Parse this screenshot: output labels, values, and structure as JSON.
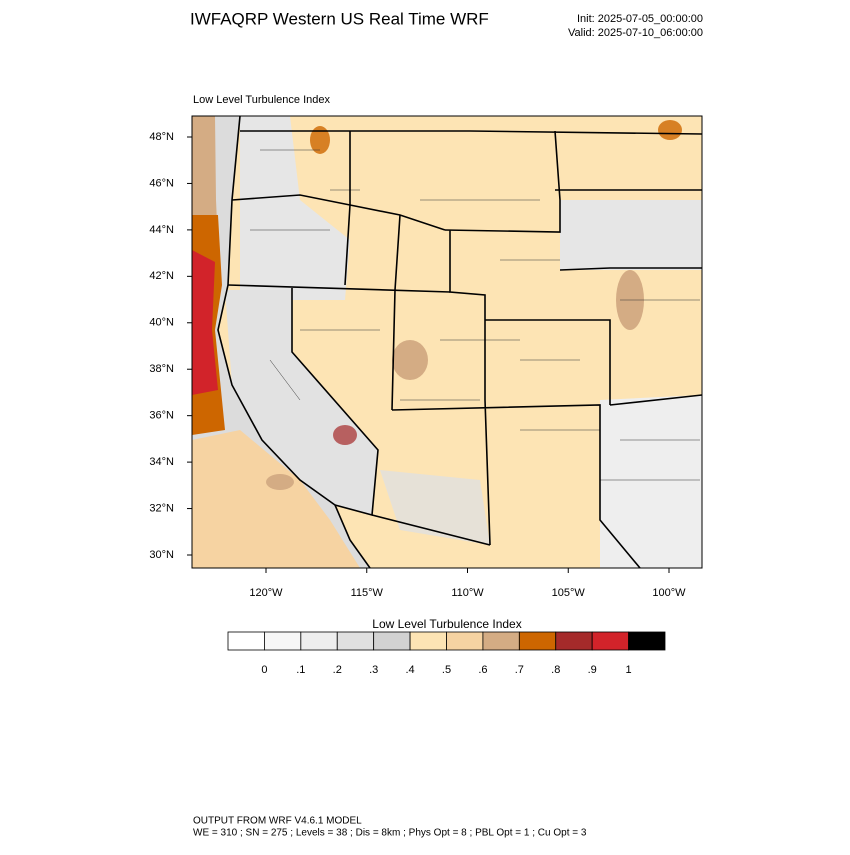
{
  "header": {
    "title": "IWFAQRP Western US Real Time WRF",
    "init": "Init: 2025-07-05_00:00:00",
    "valid": "Valid: 2025-07-10_06:00:00"
  },
  "map": {
    "subtitle": "Low Level Turbulence Index",
    "lat_ticks": [
      {
        "value": 30,
        "label": "30°N"
      },
      {
        "value": 32,
        "label": "32°N"
      },
      {
        "value": 34,
        "label": "34°N"
      },
      {
        "value": 36,
        "label": "36°N"
      },
      {
        "value": 38,
        "label": "38°N"
      },
      {
        "value": 40,
        "label": "40°N"
      },
      {
        "value": 42,
        "label": "42°N"
      },
      {
        "value": 44,
        "label": "44°N"
      },
      {
        "value": 46,
        "label": "46°N"
      },
      {
        "value": 48,
        "label": "48°N"
      }
    ],
    "lon_ticks": [
      {
        "value": -120,
        "label": "120°W"
      },
      {
        "value": -115,
        "label": "115°W"
      },
      {
        "value": -110,
        "label": "110°W"
      },
      {
        "value": -105,
        "label": "105°W"
      },
      {
        "value": -100,
        "label": "100°W"
      }
    ]
  },
  "colorbar": {
    "title": "Low Level Turbulence Index",
    "colors": [
      "#ffffff",
      "#f7f7f7",
      "#eeeeee",
      "#e0e0e0",
      "#d2d2d2",
      "#fde4b4",
      "#f6d3a2",
      "#d4ac84",
      "#cd6600",
      "#a52a2a",
      "#d2232a",
      "#000000"
    ],
    "ticks": [
      0,
      {
        "value": 0.1,
        "label": ".1"
      },
      {
        "value": 0.2,
        "label": ".2"
      },
      {
        "value": 0.3,
        "label": ".3"
      },
      {
        "value": 0.4,
        "label": ".4"
      },
      {
        "value": 0.5,
        "label": ".5"
      },
      {
        "value": 0.6,
        "label": ".6"
      },
      {
        "value": 0.7,
        "label": ".7"
      },
      {
        "value": 0.8,
        "label": ".8"
      },
      {
        "value": 0.9,
        "label": ".9"
      },
      1
    ]
  },
  "footer": {
    "line1": "OUTPUT FROM WRF V4.6.1 MODEL",
    "line2": "WE = 310 ; SN = 275 ; Levels = 38 ; Dis = 8km ; Phys Opt = 8 ; PBL Opt = 1 ; Cu Opt = 3"
  }
}
